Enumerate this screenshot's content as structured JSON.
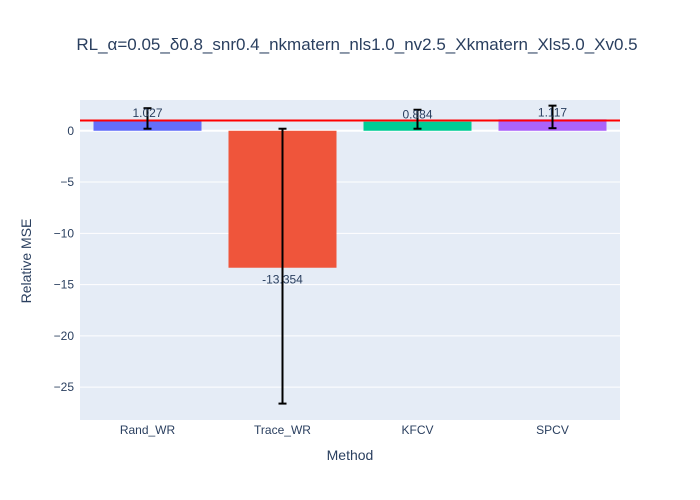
{
  "chart_data": {
    "type": "bar",
    "title": "RL_α=0.05_δ0.8_snr0.4_nkmatern_nls1.0_nv2.5_Xkmatern_Xls5.0_Xv0.5",
    "xlabel": "Method",
    "ylabel": "Relative MSE",
    "categories": [
      "Rand_WR",
      "Trace_WR",
      "KFCV",
      "SPCV"
    ],
    "values": [
      1.027,
      -13.354,
      0.884,
      1.117
    ],
    "labels": [
      "1.027",
      "-13.354",
      "0.884",
      "1.117"
    ],
    "error_low": [
      0.2,
      0.2,
      0.2,
      0.25
    ],
    "error_high": [
      2.2,
      -26.6,
      2.05,
      2.45
    ],
    "colors": [
      "#636efa",
      "#ef553b",
      "#00cc96",
      "#ab63fa"
    ],
    "reference_line": {
      "value": 1.0,
      "color": "#ff0000"
    },
    "ylim": [
      -28.2,
      3.0
    ],
    "yticks": [
      0,
      -5,
      -10,
      -15,
      -20,
      -25
    ],
    "grid": true,
    "plot_bg": "#e5ecf6"
  }
}
